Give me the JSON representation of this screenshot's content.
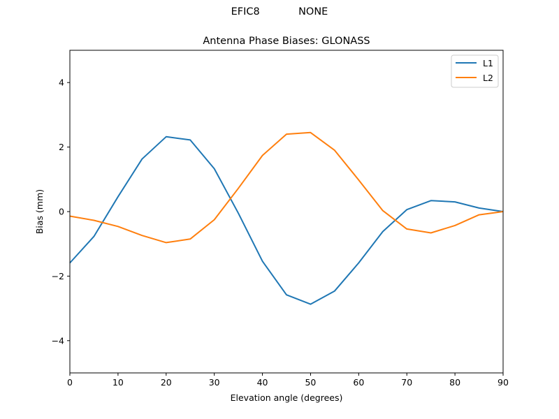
{
  "figure": {
    "suptitle": "EFIC8            NONE"
  },
  "chart_data": {
    "type": "line",
    "title": "Antenna Phase Biases: GLONASS",
    "xlabel": "Elevation angle (degrees)",
    "ylabel": "Bias (mm)",
    "xlim": [
      0,
      90
    ],
    "ylim": [
      -5,
      5
    ],
    "xticks": [
      0,
      10,
      20,
      30,
      40,
      50,
      60,
      70,
      80,
      90
    ],
    "yticks": [
      -4,
      -2,
      0,
      2,
      4
    ],
    "ytick_labels": [
      "−4",
      "−2",
      "0",
      "2",
      "4"
    ],
    "grid": false,
    "legend_position": "upper right",
    "x": [
      0,
      5,
      10,
      15,
      20,
      25,
      30,
      35,
      40,
      45,
      50,
      55,
      60,
      65,
      70,
      75,
      80,
      85,
      90
    ],
    "series": [
      {
        "name": "L1",
        "color": "#1f77b4",
        "values": [
          -1.59,
          -0.77,
          0.46,
          1.63,
          2.32,
          2.22,
          1.33,
          -0.05,
          -1.54,
          -2.58,
          -2.87,
          -2.46,
          -1.59,
          -0.62,
          0.06,
          0.34,
          0.3,
          0.11,
          0.0
        ]
      },
      {
        "name": "L2",
        "color": "#ff7f0e",
        "values": [
          -0.14,
          -0.27,
          -0.46,
          -0.74,
          -0.96,
          -0.85,
          -0.25,
          0.72,
          1.74,
          2.4,
          2.45,
          1.9,
          0.98,
          0.03,
          -0.54,
          -0.66,
          -0.43,
          -0.1,
          0.0
        ]
      }
    ]
  }
}
